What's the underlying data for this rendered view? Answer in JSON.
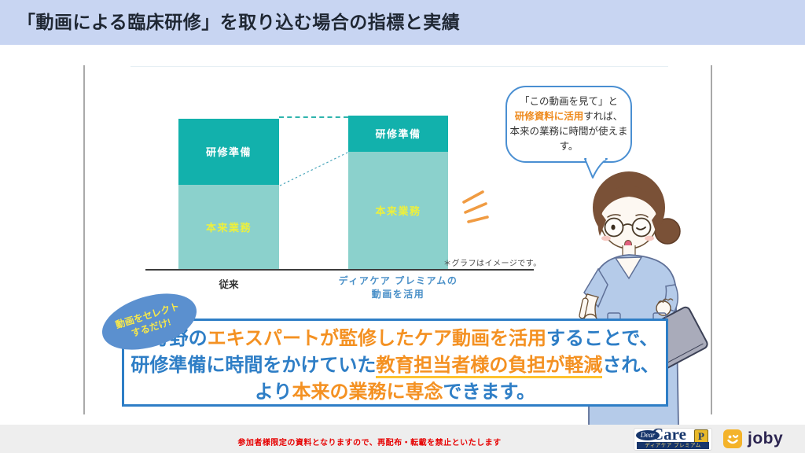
{
  "header": {
    "title": "「動画による臨床研修」を取り込む場合の指標と実績"
  },
  "chart_data": {
    "type": "bar",
    "stacked": true,
    "categories": [
      "従来",
      "ディアケア プレミアムの動画を活用"
    ],
    "category2_lines": [
      "ディアケア プレミアムの",
      "動画を活用"
    ],
    "series": [
      {
        "name": "研修準備",
        "values": [
          4.3,
          2.35
        ],
        "color": "#12b1ac",
        "label_color": "#ffffff"
      },
      {
        "name": "本来業務",
        "values": [
          5.55,
          7.7
        ],
        "color": "#8bd1cc",
        "label_color": "#edf03c"
      }
    ],
    "ylim": [
      0,
      10
    ],
    "grid": false,
    "legend": false,
    "note": "＊グラフはイメージです。"
  },
  "speech_bubble": {
    "line1": "「この動画を見て」と",
    "line2_highlight": "研修資料に活用",
    "line2_rest": "すれば、",
    "line3": "本来の業務に時間が使えます。"
  },
  "badge": {
    "line1": "動画をセレクト",
    "line2": "するだけ!"
  },
  "message_box": {
    "l1a": "各分野の",
    "l1b": "エキスパートが監修したケア動画を活用",
    "l1c": "することで、",
    "l2a": "研修準備に時間をかけていた",
    "l2b": "教育担当者様の負担が軽減",
    "l2c": "され、",
    "l3a": "より",
    "l3b": "本来の業務に専念",
    "l3c": "できます。"
  },
  "footer": {
    "notice": "参加者様限定の資料となりますので、再配布・転載を禁止といたします"
  },
  "logos": {
    "dearcare": {
      "dear": "Dear",
      "care": "Care",
      "badge": "P",
      "subtitle": "ディアケア プレミアム"
    },
    "joby": {
      "name": "joby"
    }
  },
  "colors": {
    "header_bg": "#c8d5f2",
    "teal_dark": "#12b1ac",
    "teal_light": "#8bd1cc",
    "bar_label_yellow": "#edf03c",
    "text_blue": "#2e7ec6",
    "text_orange": "#f49122",
    "underline_yellow": "#fdc32f",
    "bubble_border_blue": "#4a8fd2",
    "badge_blue": "#5b90cf",
    "badge_text_yellow": "#f7e84a",
    "notice_red": "#e60000",
    "axis_label_blue": "#4a90c8",
    "emphasis_orange": "#f09b42"
  }
}
